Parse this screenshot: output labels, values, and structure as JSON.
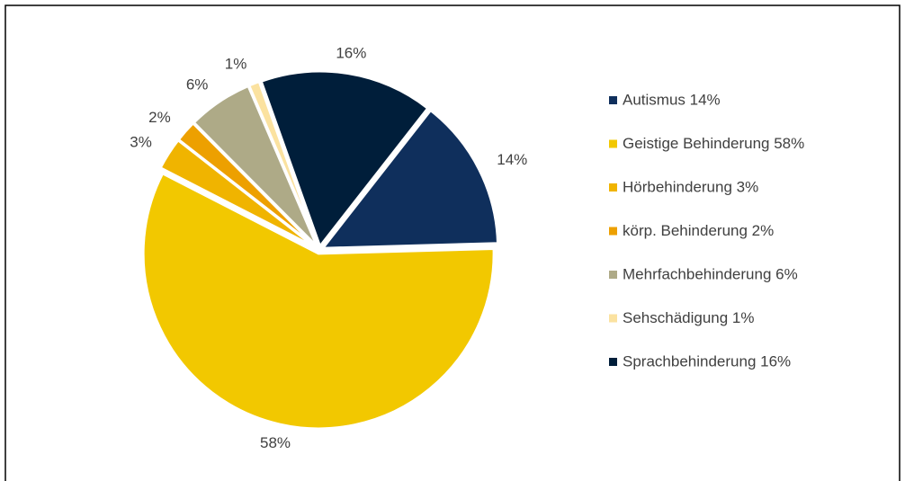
{
  "chart_data": {
    "type": "pie",
    "categories": [
      "Autismus 14%",
      "Geistige Behinderung 58%",
      "Hörbehinderung 3%",
      "körp. Behinderung 2%",
      "Mehrfachbehinderung 6%",
      "Sehschädigung 1%",
      "Sprachbehinderung 16%"
    ],
    "values": [
      14,
      58,
      3,
      2,
      6,
      1,
      16
    ],
    "value_labels": [
      "14%",
      "58%",
      "3%",
      "2%",
      "6%",
      "1%",
      "16%"
    ],
    "colors": [
      "#0f2f5c",
      "#f2c800",
      "#f0b400",
      "#eda000",
      "#aeaa87",
      "#fbe2a0",
      "#001e3a"
    ],
    "legend": "right"
  }
}
